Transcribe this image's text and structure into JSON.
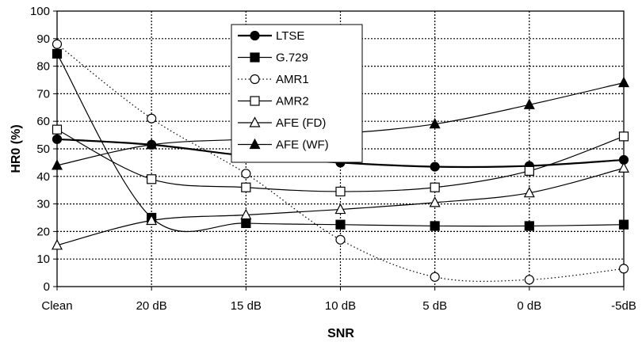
{
  "chart_data": {
    "type": "line",
    "title": "",
    "xlabel": "SNR",
    "ylabel": "HR0 (%)",
    "categories": [
      "Clean",
      "20 dB",
      "15 dB",
      "10 dB",
      "5 dB",
      "0 dB",
      "-5dB"
    ],
    "ylim": [
      0,
      100
    ],
    "yticks": [
      0,
      10,
      20,
      30,
      40,
      50,
      60,
      70,
      80,
      90,
      100
    ],
    "grid": true,
    "legend_position": "top-center",
    "series": [
      {
        "name": "LTSE",
        "marker": "filled-circle",
        "line": "solid-thick",
        "values": [
          53.5,
          51.5,
          47.5,
          45,
          43.5,
          43.8,
          46
        ]
      },
      {
        "name": "G.729",
        "marker": "filled-square",
        "line": "solid",
        "values": [
          84.5,
          25,
          23,
          22.5,
          22,
          22,
          22.5
        ]
      },
      {
        "name": "AMR1",
        "marker": "open-circle",
        "line": "dotted",
        "values": [
          88,
          61,
          41,
          17,
          3.5,
          2.5,
          6.5
        ]
      },
      {
        "name": "AMR2",
        "marker": "open-square",
        "line": "solid",
        "values": [
          57,
          39,
          36,
          34.5,
          36,
          42,
          54.5
        ]
      },
      {
        "name": "AFE (FD)",
        "marker": "open-triangle",
        "line": "solid",
        "values": [
          15,
          24,
          26,
          28,
          30.5,
          34,
          43
        ]
      },
      {
        "name": "AFE (WF)",
        "marker": "filled-triangle",
        "line": "solid",
        "values": [
          44,
          51.5,
          53.5,
          55.5,
          59,
          66,
          74
        ]
      }
    ]
  }
}
